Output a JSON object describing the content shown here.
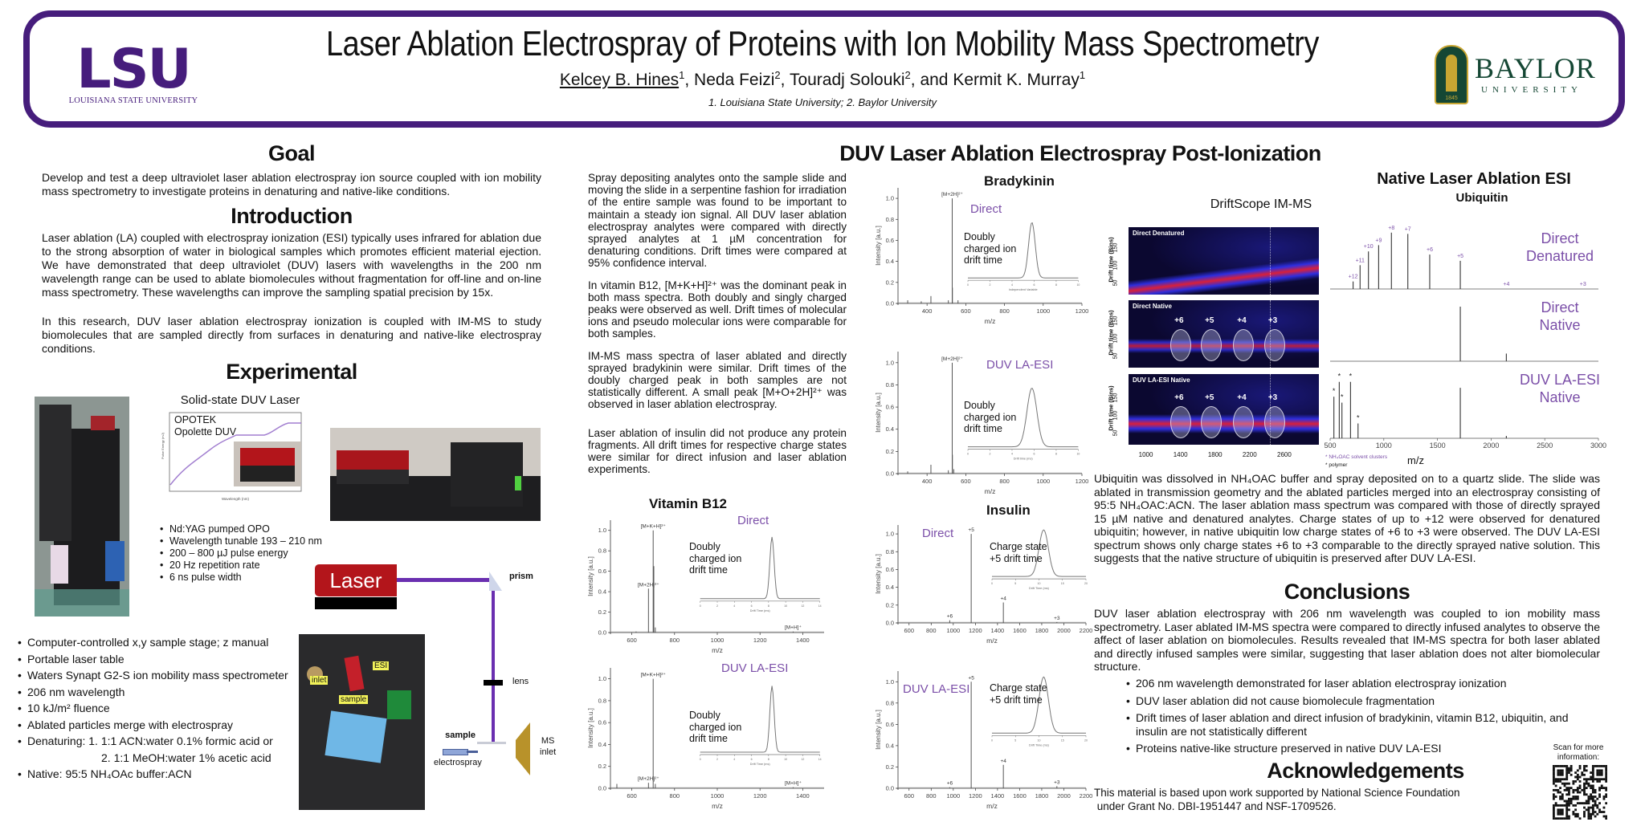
{
  "colors": {
    "brand_purple": "#461d7c",
    "condition_label": "#7b4fa8",
    "laser_red": "#b3151b",
    "beam_purple": "#6a2fb0",
    "baylor_green": "#154734",
    "baylor_gold": "#c8a632"
  },
  "header": {
    "title": "Laser Ablation Electrospray of Proteins with Ion Mobility Mass Spectrometry",
    "authors": [
      {
        "name": "Kelcey B. Hines",
        "aff": "1",
        "sep": ", "
      },
      {
        "name": "Neda Feizi",
        "aff": "2",
        "sep": ", "
      },
      {
        "name": "Touradj Solouki",
        "aff": "2",
        "sep": ", and "
      },
      {
        "name": "Kermit K. Murray",
        "aff": "1",
        "sep": ""
      }
    ],
    "affiliations": "1. Louisiana State University; 2. Baylor University",
    "lsu_logo": {
      "mark": "LSU",
      "subtitle": "LOUISIANA STATE UNIVERSITY"
    },
    "baylor_logo": {
      "name": "BAYLOR",
      "subtitle": "UNIVERSITY",
      "year": "1845"
    }
  },
  "goal": {
    "heading": "Goal",
    "text": "Develop and test a deep ultraviolet laser ablation electrospray ion source coupled with ion mobility mass spectrometry to investigate proteins in denaturing and native-like conditions."
  },
  "introduction": {
    "heading": "Introduction",
    "paragraphs": [
      "Laser ablation (LA) coupled with electrospray ionization (ESI) typically uses infrared for ablation due to the strong absorption of water in biological samples which promotes efficient material ejection. We have demonstrated that deep ultraviolet (DUV) lasers with wavelengths in the 200 nm wavelength range can be used to ablate biomolecules without fragmentation for off-line and on-line mass spectrometry. These wavelengths can improve the sampling spatial precision by 15x.",
      "In this research, DUV laser ablation electrospray ionization is coupled with IM-MS to study biomolecules that are sampled directly from surfaces in denaturing and native-like electrospray conditions."
    ]
  },
  "experimental": {
    "heading": "Experimental",
    "laser_plot": {
      "title": "Solid-state DUV Laser",
      "label_line1": "OPOTEK",
      "label_line2": "Opolette DUV",
      "xlabel": "Wavelength (nm)",
      "ylabel": "Pulse Energy (mJ)"
    },
    "laser_specs": [
      "Nd:YAG pumped OPO",
      "Wavelength tunable 193 – 210 nm",
      "200 – 800 µJ pulse energy",
      "20 Hz repetition rate",
      "6 ns pulse width"
    ],
    "diagram": {
      "laser": "Laser",
      "prism": "prism",
      "lens": "lens",
      "sample": "sample",
      "electrospray": "electrospray",
      "ms_inlet_1": "MS",
      "ms_inlet_2": "inlet"
    },
    "photo_labels": {
      "esi": "ESI",
      "inlet": "inlet",
      "sample": "sample"
    },
    "setup": [
      "Computer-controlled x,y sample stage; z manual",
      "Portable laser table",
      "Waters Synapt G2-S ion mobility mass spectrometer",
      "206 nm wavelength",
      "10 kJ/m² fluence",
      "Ablated particles merge with electrospray",
      "Denaturing: 1. 1:1 ACN:water 0.1% formic acid or",
      "Native: 95:5 NH₄OAc buffer:ACN"
    ],
    "setup_continuation": "2. 1:1 MeOH:water 1% acetic acid"
  },
  "post_ionization": {
    "heading": "DUV Laser Ablation Electrospray Post-Ionization",
    "paragraphs": [
      "Spray depositing analytes onto the sample slide and moving the slide in a serpentine fashion for irradiation of the entire sample was found to be important to maintain a steady ion signal. All DUV laser ablation electrospray analytes were compared with directly sprayed analytes at 1 µM concentration for denaturing conditions. Drift times were compared at 95% confidence interval.",
      "In vitamin B12, [M+K+H]²⁺ was the dominant peak in both mass spectra. Both doubly and singly charged peaks were observed as well. Drift times of molecular ions and pseudo molecular ions were comparable for both samples.",
      "IM-MS mass spectra of laser ablated and directly sprayed bradykinin were similar. Drift times of the doubly charged peak in both samples are not statistically different. A small peak [M+O+2H]²⁺ was observed in laser ablation electrospray.",
      "Laser ablation of insulin did not produce any protein fragments. All drift times for respective charge states were similar for direct infusion and laser ablation experiments."
    ]
  },
  "chart_data": [
    {
      "id": "bradykinin-direct",
      "type": "bar",
      "title": "Bradykinin",
      "condition": "Direct",
      "xlabel": "m/z",
      "ylabel": "Intensity [a.u.]",
      "xlim": [
        250,
        1200
      ],
      "xticks": [
        400,
        600,
        800,
        1000,
        1200
      ],
      "ylim": [
        0,
        1.1
      ],
      "yticks": [
        0,
        0.2,
        0.4,
        0.6,
        0.8,
        1.0
      ],
      "peaks": [
        {
          "x": 300,
          "y": 0.03
        },
        {
          "x": 370,
          "y": 0.02
        },
        {
          "x": 420,
          "y": 0.07
        },
        {
          "x": 510,
          "y": 0.03
        },
        {
          "x": 530,
          "y": 1.0,
          "label": "[M+2H]²⁺"
        },
        {
          "x": 531,
          "y": 0.15
        },
        {
          "x": 560,
          "y": 0.03
        }
      ],
      "inset": {
        "label": "Doubly charged ion drift time",
        "xlabel": "Independent Variable",
        "xlim": [
          0,
          10
        ],
        "xticks": [
          0,
          2,
          4,
          6,
          8,
          10
        ],
        "center": 5.8,
        "sigma": 0.3
      }
    },
    {
      "id": "bradykinin-laesi",
      "type": "bar",
      "condition": "DUV LA-ESI",
      "xlabel": "m/z",
      "ylabel": "Intensity [a.u.]",
      "xlim": [
        250,
        1200
      ],
      "xticks": [
        400,
        600,
        800,
        1000,
        1200
      ],
      "ylim": [
        0,
        1.1
      ],
      "yticks": [
        0,
        0.2,
        0.4,
        0.6,
        0.8,
        1.0
      ],
      "peaks": [
        {
          "x": 300,
          "y": 0.02
        },
        {
          "x": 420,
          "y": 0.08
        },
        {
          "x": 510,
          "y": 0.03
        },
        {
          "x": 530,
          "y": 1.0,
          "label": "[M+2H]²⁺"
        },
        {
          "x": 531,
          "y": 0.17
        },
        {
          "x": 538,
          "y": 0.04
        }
      ],
      "inset": {
        "label": "Doubly charged ion drift time",
        "xlabel": "Drift time (ms)",
        "xlim": [
          0,
          10
        ],
        "xticks": [
          0,
          2,
          4,
          6,
          8,
          10
        ],
        "center": 5.8,
        "sigma": 0.45
      }
    },
    {
      "id": "vitaminb12-direct",
      "type": "bar",
      "title": "Vitamin B12",
      "condition": "Direct",
      "xlabel": "m/z",
      "ylabel": "Intensity [a.u.]",
      "xlim": [
        500,
        1500
      ],
      "xticks": [
        600,
        800,
        1000,
        1200,
        1400
      ],
      "ylim": [
        0,
        1.1
      ],
      "yticks": [
        0,
        0.2,
        0.4,
        0.6,
        0.8,
        1.0
      ],
      "peaks": [
        {
          "x": 620,
          "y": 0.01
        },
        {
          "x": 678,
          "y": 0.43,
          "label": "[M+2H]²⁺"
        },
        {
          "x": 700,
          "y": 1.0,
          "label": "[M+K+H]²⁺"
        },
        {
          "x": 703,
          "y": 0.65
        },
        {
          "x": 710,
          "y": 0.05
        },
        {
          "x": 1355,
          "y": 0.01,
          "label": "[M+H]⁺"
        }
      ],
      "inset": {
        "label": "Doubly charged ion drift time",
        "xlabel": "Drift Time (ms)",
        "xlim": [
          0,
          14
        ],
        "xticks": [
          0,
          2,
          4,
          6,
          8,
          10,
          12,
          14
        ],
        "center": 8.4,
        "sigma": 0.25
      }
    },
    {
      "id": "vitaminb12-laesi",
      "type": "bar",
      "condition": "DUV LA-ESI",
      "xlabel": "m/z",
      "ylabel": "Intensity [a.u.]",
      "xlim": [
        500,
        1500
      ],
      "xticks": [
        600,
        800,
        1000,
        1200,
        1400
      ],
      "ylim": [
        0,
        1.1
      ],
      "yticks": [
        0,
        0.2,
        0.4,
        0.6,
        0.8,
        1.0
      ],
      "peaks": [
        {
          "x": 530,
          "y": 0.04
        },
        {
          "x": 678,
          "y": 0.05,
          "label": "[M+2H]²⁺"
        },
        {
          "x": 700,
          "y": 1.0,
          "label": "[M+K+H]²⁺"
        },
        {
          "x": 710,
          "y": 0.04
        },
        {
          "x": 1355,
          "y": 0.01,
          "label": "[M+H]⁺"
        }
      ],
      "inset": {
        "label": "Doubly charged ion drift time",
        "xlabel": "Drift Time (ms)",
        "xlim": [
          0,
          14
        ],
        "xticks": [
          0,
          2,
          4,
          6,
          8,
          10,
          12,
          14
        ],
        "center": 8.4,
        "sigma": 0.25
      }
    },
    {
      "id": "insulin-direct",
      "type": "bar",
      "title": "Insulin",
      "condition": "Direct",
      "xlabel": "m/z",
      "ylabel": "Intensity [a.u.]",
      "xlim": [
        500,
        2200
      ],
      "xticks": [
        600,
        800,
        1000,
        1200,
        1400,
        1600,
        1800,
        2000,
        2200
      ],
      "ylim": [
        0,
        1.1
      ],
      "yticks": [
        0,
        0.2,
        0.4,
        0.6,
        0.8,
        1.0
      ],
      "peaks": [
        {
          "x": 968,
          "y": 0.03,
          "label": "+6"
        },
        {
          "x": 1162,
          "y": 1.0,
          "label": "+5"
        },
        {
          "x": 1453,
          "y": 0.23,
          "label": "+4"
        },
        {
          "x": 1937,
          "y": 0.01,
          "label": "+3"
        }
      ],
      "inset": {
        "label": "Charge state +5 drift time",
        "xlabel": "Drift Time (ms)",
        "xlim": [
          0,
          20
        ],
        "xticks": [
          0,
          5,
          10,
          15,
          20
        ],
        "center": 11,
        "sigma": 1.0
      }
    },
    {
      "id": "insulin-laesi",
      "type": "bar",
      "condition": "DUV LA-ESI",
      "xlabel": "m/z",
      "ylabel": "Intensity [a.u.]",
      "xlim": [
        500,
        2200
      ],
      "xticks": [
        600,
        800,
        1000,
        1200,
        1400,
        1600,
        1800,
        2000,
        2200
      ],
      "ylim": [
        0,
        1.1
      ],
      "yticks": [
        0,
        0.2,
        0.4,
        0.6,
        0.8,
        1.0
      ],
      "peaks": [
        {
          "x": 968,
          "y": 0.01,
          "label": "+6"
        },
        {
          "x": 1162,
          "y": 1.0,
          "label": "+5"
        },
        {
          "x": 1453,
          "y": 0.22,
          "label": "+4"
        },
        {
          "x": 1937,
          "y": 0.02,
          "label": "+3"
        }
      ],
      "inset": {
        "label": "Charge state +5 drift time",
        "xlabel": "Drift Time (ms)",
        "xlim": [
          0,
          20
        ],
        "xticks": [
          0,
          5,
          10,
          15,
          20
        ],
        "center": 11,
        "sigma": 1.0
      }
    }
  ],
  "native": {
    "heading": "Native Laser Ablation ESI",
    "protein": "Ubiquitin",
    "driftscope_title": "DriftScope IM-MS",
    "driftscope": {
      "xlim": [
        800,
        3000
      ],
      "xticks": [
        1000,
        1400,
        1800,
        2200,
        2600
      ],
      "ylabel": "Drift time (Bins)",
      "yticks": [
        "50",
        "100",
        "150"
      ],
      "panels": [
        {
          "label": "Direct Denatured",
          "charges": []
        },
        {
          "label": "Direct Native",
          "charges": [
            {
              "label": "+6",
              "mz": 1405
            },
            {
              "label": "+5",
              "mz": 1757
            },
            {
              "label": "+4",
              "mz": 2130
            },
            {
              "label": "+3",
              "mz": 2488
            }
          ]
        },
        {
          "label": "DUV LA-ESI Native",
          "charges": [
            {
              "label": "+6",
              "mz": 1405
            },
            {
              "label": "+5",
              "mz": 1757
            },
            {
              "label": "+4",
              "mz": 2130
            },
            {
              "label": "+3",
              "mz": 2488
            }
          ]
        }
      ]
    },
    "spectra": {
      "xlim": [
        500,
        3000
      ],
      "xticks": [
        500,
        1000,
        1500,
        2000,
        2500,
        3000
      ],
      "xlabel": "m/z",
      "panels": [
        {
          "condition_line1": "Direct",
          "condition_line2": "Denatured",
          "peaks": [
            {
              "x": 714,
              "y": 0.12,
              "label": "+12"
            },
            {
              "x": 779,
              "y": 0.38,
              "label": "+11"
            },
            {
              "x": 857,
              "y": 0.6,
              "label": "+10"
            },
            {
              "x": 952,
              "y": 0.7,
              "label": "+9"
            },
            {
              "x": 1071,
              "y": 0.9,
              "label": "+8"
            },
            {
              "x": 1224,
              "y": 0.88,
              "label": "+7"
            },
            {
              "x": 1428,
              "y": 0.55,
              "label": "+6"
            },
            {
              "x": 1713,
              "y": 0.45,
              "label": "+5"
            },
            {
              "x": 2142,
              "y": 0.0,
              "label": "+4"
            },
            {
              "x": 2856,
              "y": 0.0,
              "label": "+3"
            }
          ]
        },
        {
          "condition_line1": "Direct",
          "condition_line2": "Native",
          "peaks": [
            {
              "x": 1713,
              "y": 1.0
            },
            {
              "x": 2142,
              "y": 0.14
            }
          ]
        },
        {
          "condition_line1": "DUV LA-ESI",
          "condition_line2": "Native",
          "peaks": [
            {
              "x": 535,
              "y": 0.7,
              "label": "*"
            },
            {
              "x": 585,
              "y": 0.95,
              "label": "*"
            },
            {
              "x": 610,
              "y": 0.6,
              "label": "*"
            },
            {
              "x": 690,
              "y": 0.95,
              "label": "*"
            },
            {
              "x": 760,
              "y": 0.25,
              "label": "*"
            },
            {
              "x": 1713,
              "y": 0.85
            },
            {
              "x": 2142,
              "y": 0.04
            }
          ]
        }
      ],
      "footnote_solvent": "* NH₄OAC solvent clusters",
      "footnote_polymer": "* polymer"
    },
    "text": "Ubiquitin was dissolved in NH₄OAC buffer and spray deposited on to a quartz slide. The slide was ablated in transmission geometry and the ablated particles merged into  an electrospray consisting of 95:5 NH₄OAC:ACN. The laser ablation mass spectrum was compared with those of directly sprayed 15 µM native and denatured analytes. Charge states of up to +12 were observed for denatured ubiquitin; however, in native ubiquitin low charge states of +6 to +3 were observed. The DUV LA-ESI spectrum shows only charge states +6 to +3 comparable to the directly sprayed native solution. This suggests that the native structure of ubiquitin is preserved after DUV LA-ESI."
  },
  "conclusions": {
    "heading": "Conclusions",
    "text": "DUV laser ablation electrospray with 206 nm wavelength was coupled to ion mobility mass spectrometry. Laser ablated IM-MS spectra were compared to directly infused analytes to observe the affect of laser ablation on biomolecules. Results revealed that IM-MS spectra for both laser ablated and directly infused samples were similar, suggesting that laser ablation does not alter biomolecular structure.",
    "bullets": [
      "206 nm wavelength demonstrated for laser ablation electrospray ionization",
      "DUV laser ablation did not cause biomolecule fragmentation",
      "Drift times of laser ablation and direct infusion of bradykinin, vitamin B12, ubiquitin, and insulin are not statistically different",
      "Proteins native-like structure preserved in native DUV LA-ESI"
    ]
  },
  "acknowledgements": {
    "heading": "Acknowledgements",
    "line1": "This material is based upon work supported by National Science Foundation",
    "line2": " under Grant No. DBI-1951447 and NSF-1709526.",
    "qr_caption_1": "Scan for more",
    "qr_caption_2": "information:"
  }
}
